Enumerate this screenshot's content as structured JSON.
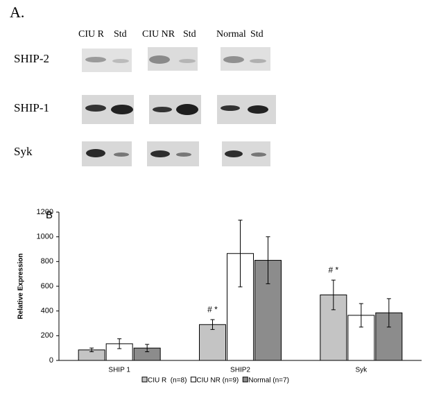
{
  "blot_panel": {
    "label": "A.",
    "lane_headers": [
      "CIU R",
      "Std",
      "CIU NR",
      "Std",
      "Normal",
      "Std"
    ],
    "rows": [
      "SHIP-2",
      "SHIP-1",
      "Syk"
    ]
  },
  "chart_data": {
    "type": "bar",
    "panel_label": "B",
    "ylabel": "Relative Expression",
    "categories": [
      "SHIP 1",
      "SHIP2",
      "Syk"
    ],
    "series": [
      {
        "name": "CIU R  (n=8)",
        "color": "#c4c4c4",
        "values": [
          85,
          290,
          530
        ],
        "errors": [
          15,
          40,
          120
        ]
      },
      {
        "name": "CIU NR (n=9)",
        "color": "#ffffff",
        "values": [
          135,
          865,
          365
        ],
        "errors": [
          40,
          270,
          95
        ]
      },
      {
        "name": "Normal (n=7)",
        "color": "#8c8c8c",
        "values": [
          100,
          810,
          385
        ],
        "errors": [
          30,
          190,
          115
        ]
      }
    ],
    "ylim": [
      0,
      1200
    ],
    "yticks": [
      0,
      200,
      400,
      600,
      800,
      1000,
      1200
    ],
    "annotations": [
      {
        "text": "# *",
        "category": "SHIP2"
      },
      {
        "text": "# *",
        "category": "Syk"
      }
    ]
  }
}
